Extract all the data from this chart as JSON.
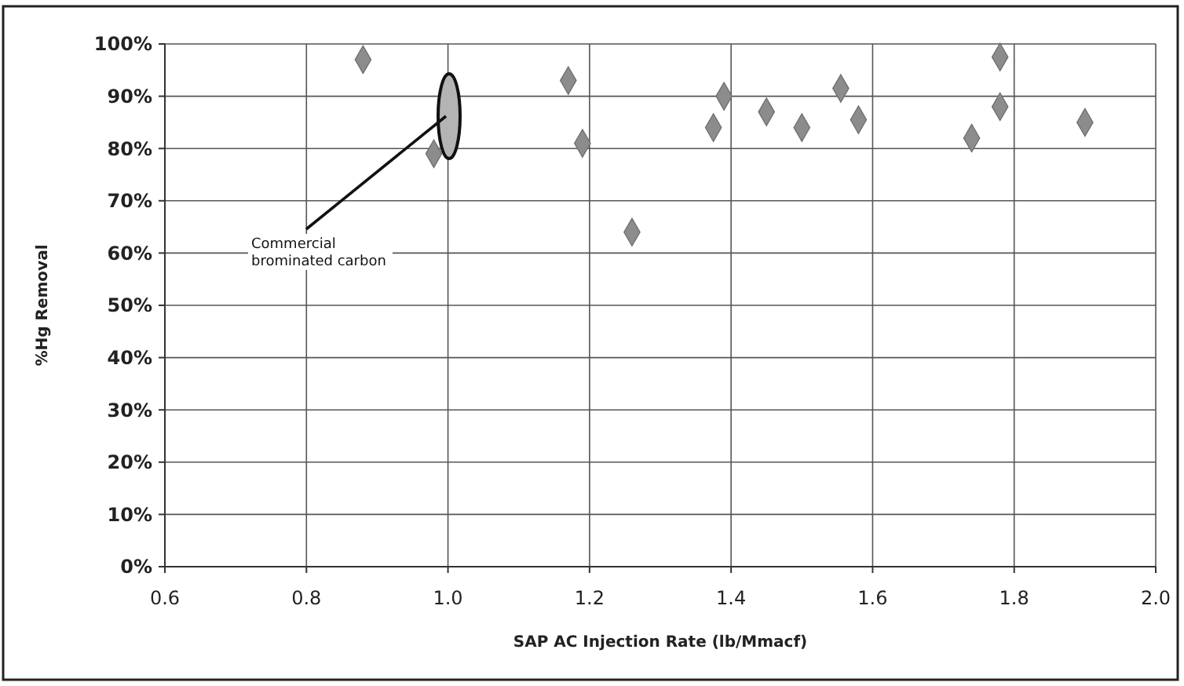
{
  "chart_data": {
    "type": "scatter",
    "xlabel": "SAP AC Injection Rate (lb/Mmacf)",
    "ylabel": "%Hg Removal",
    "x": [
      0.88,
      0.98,
      1.17,
      1.19,
      1.26,
      1.375,
      1.39,
      1.45,
      1.5,
      1.555,
      1.58,
      1.74,
      1.78,
      1.78,
      1.9
    ],
    "series": [
      {
        "color": "#8c8c8c",
        "values": [
          97,
          79,
          93,
          81,
          64,
          84,
          90,
          87,
          84,
          91.5,
          85.5,
          82,
          97.5,
          88,
          85
        ]
      }
    ],
    "marker": "diamond",
    "grid": true,
    "xlim": [
      0.6,
      2.0
    ],
    "xticks": [
      {
        "value": 0.6,
        "label": "0.6"
      },
      {
        "value": 0.8,
        "label": "0.8"
      },
      {
        "value": 1.0,
        "label": "1.0"
      },
      {
        "value": 1.2,
        "label": "1.2"
      },
      {
        "value": 1.4,
        "label": "1.4"
      },
      {
        "value": 1.6,
        "label": "1.6"
      },
      {
        "value": 1.8,
        "label": "1.8"
      },
      {
        "value": 2.0,
        "label": "2.0"
      }
    ],
    "ylim": [
      0,
      100
    ],
    "yticks": [
      {
        "value": 0,
        "label": "0%"
      },
      {
        "value": 10,
        "label": "10%"
      },
      {
        "value": 20,
        "label": "20%"
      },
      {
        "value": 30,
        "label": "30%"
      },
      {
        "value": 40,
        "label": "40%"
      },
      {
        "value": 50,
        "label": "50%"
      },
      {
        "value": 60,
        "label": "60%"
      },
      {
        "value": 70,
        "label": "70%"
      },
      {
        "value": 80,
        "label": "80%"
      },
      {
        "value": 90,
        "label": "90%"
      },
      {
        "value": 100,
        "label": "100%"
      }
    ],
    "annotations": [
      "Commercial brominated carbon"
    ]
  }
}
